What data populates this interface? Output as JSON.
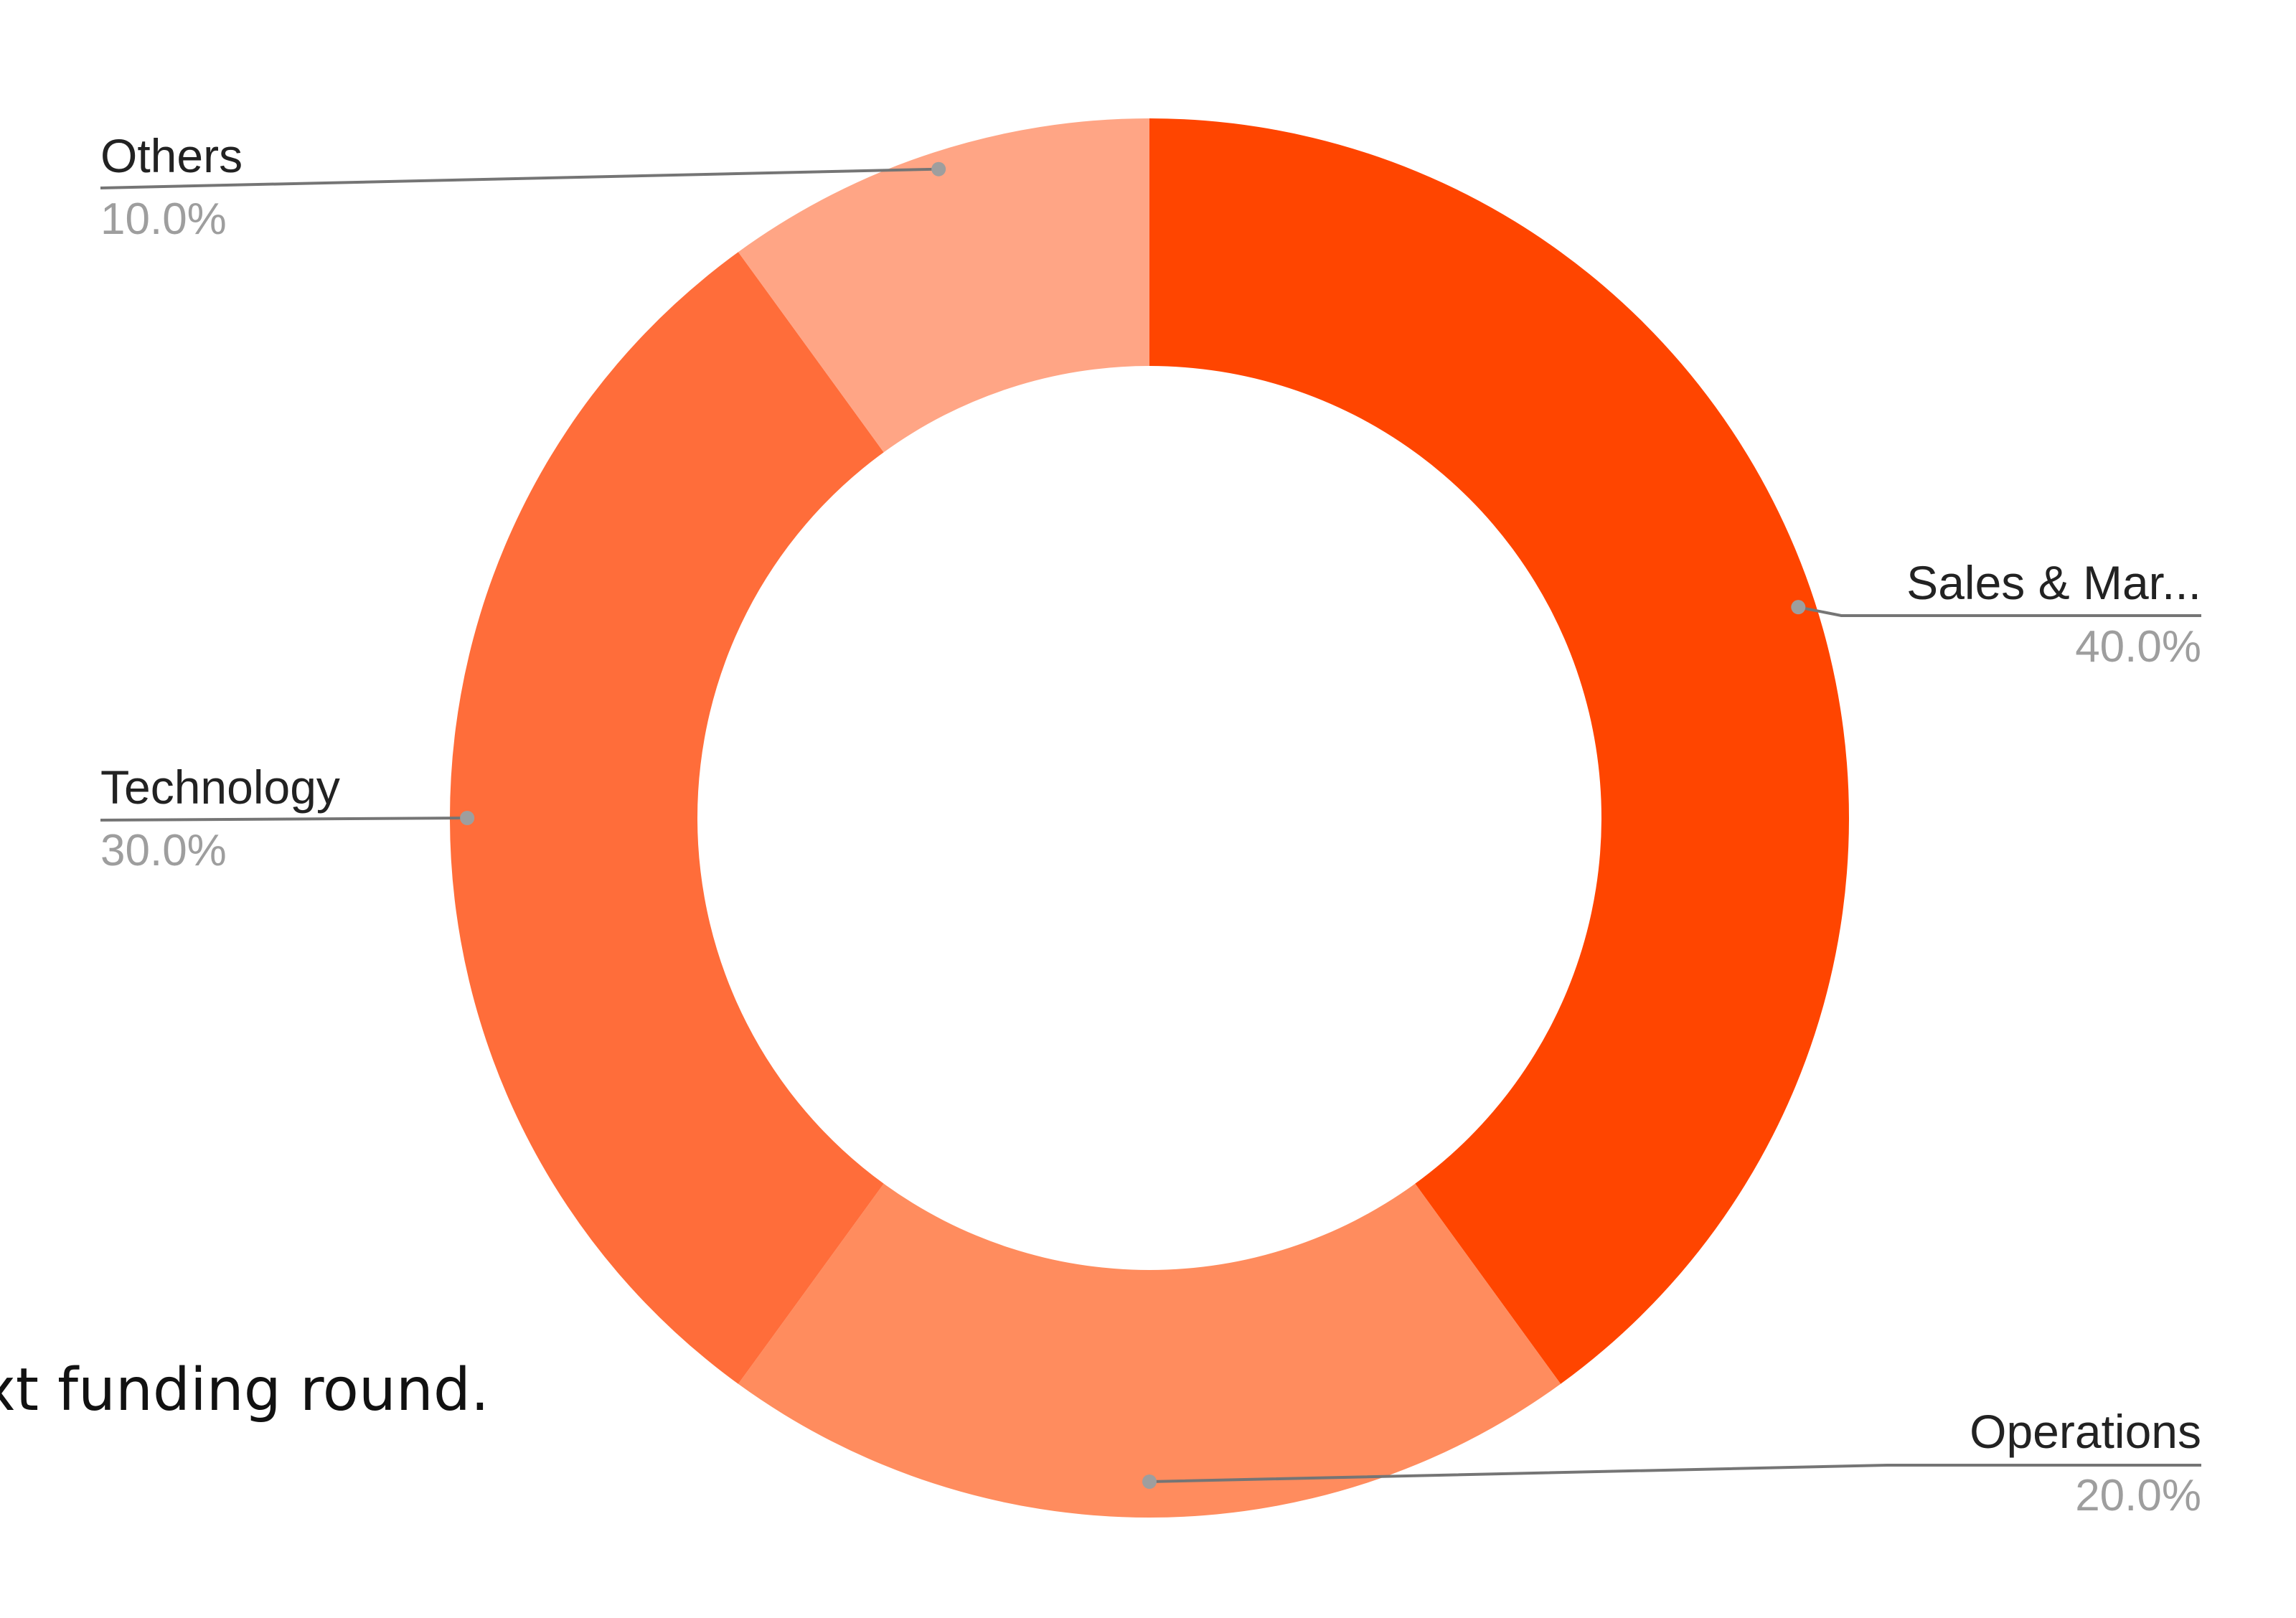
{
  "body_text_fragment": "xt funding round.",
  "chart_data": {
    "type": "pie",
    "donut": true,
    "title": "",
    "start_angle_deg": 0,
    "direction": "clockwise",
    "slices": [
      {
        "label": "Sales & Mar...",
        "value": 40.0,
        "percent_label": "40.0%",
        "color": "#ff4500"
      },
      {
        "label": "Operations",
        "value": 20.0,
        "percent_label": "20.0%",
        "color": "#ff8c5e"
      },
      {
        "label": "Technology",
        "value": 30.0,
        "percent_label": "30.0%",
        "color": "#ff6d3a"
      },
      {
        "label": "Others",
        "value": 10.0,
        "percent_label": "10.0%",
        "color": "#ffa585"
      }
    ],
    "legend": "none"
  }
}
